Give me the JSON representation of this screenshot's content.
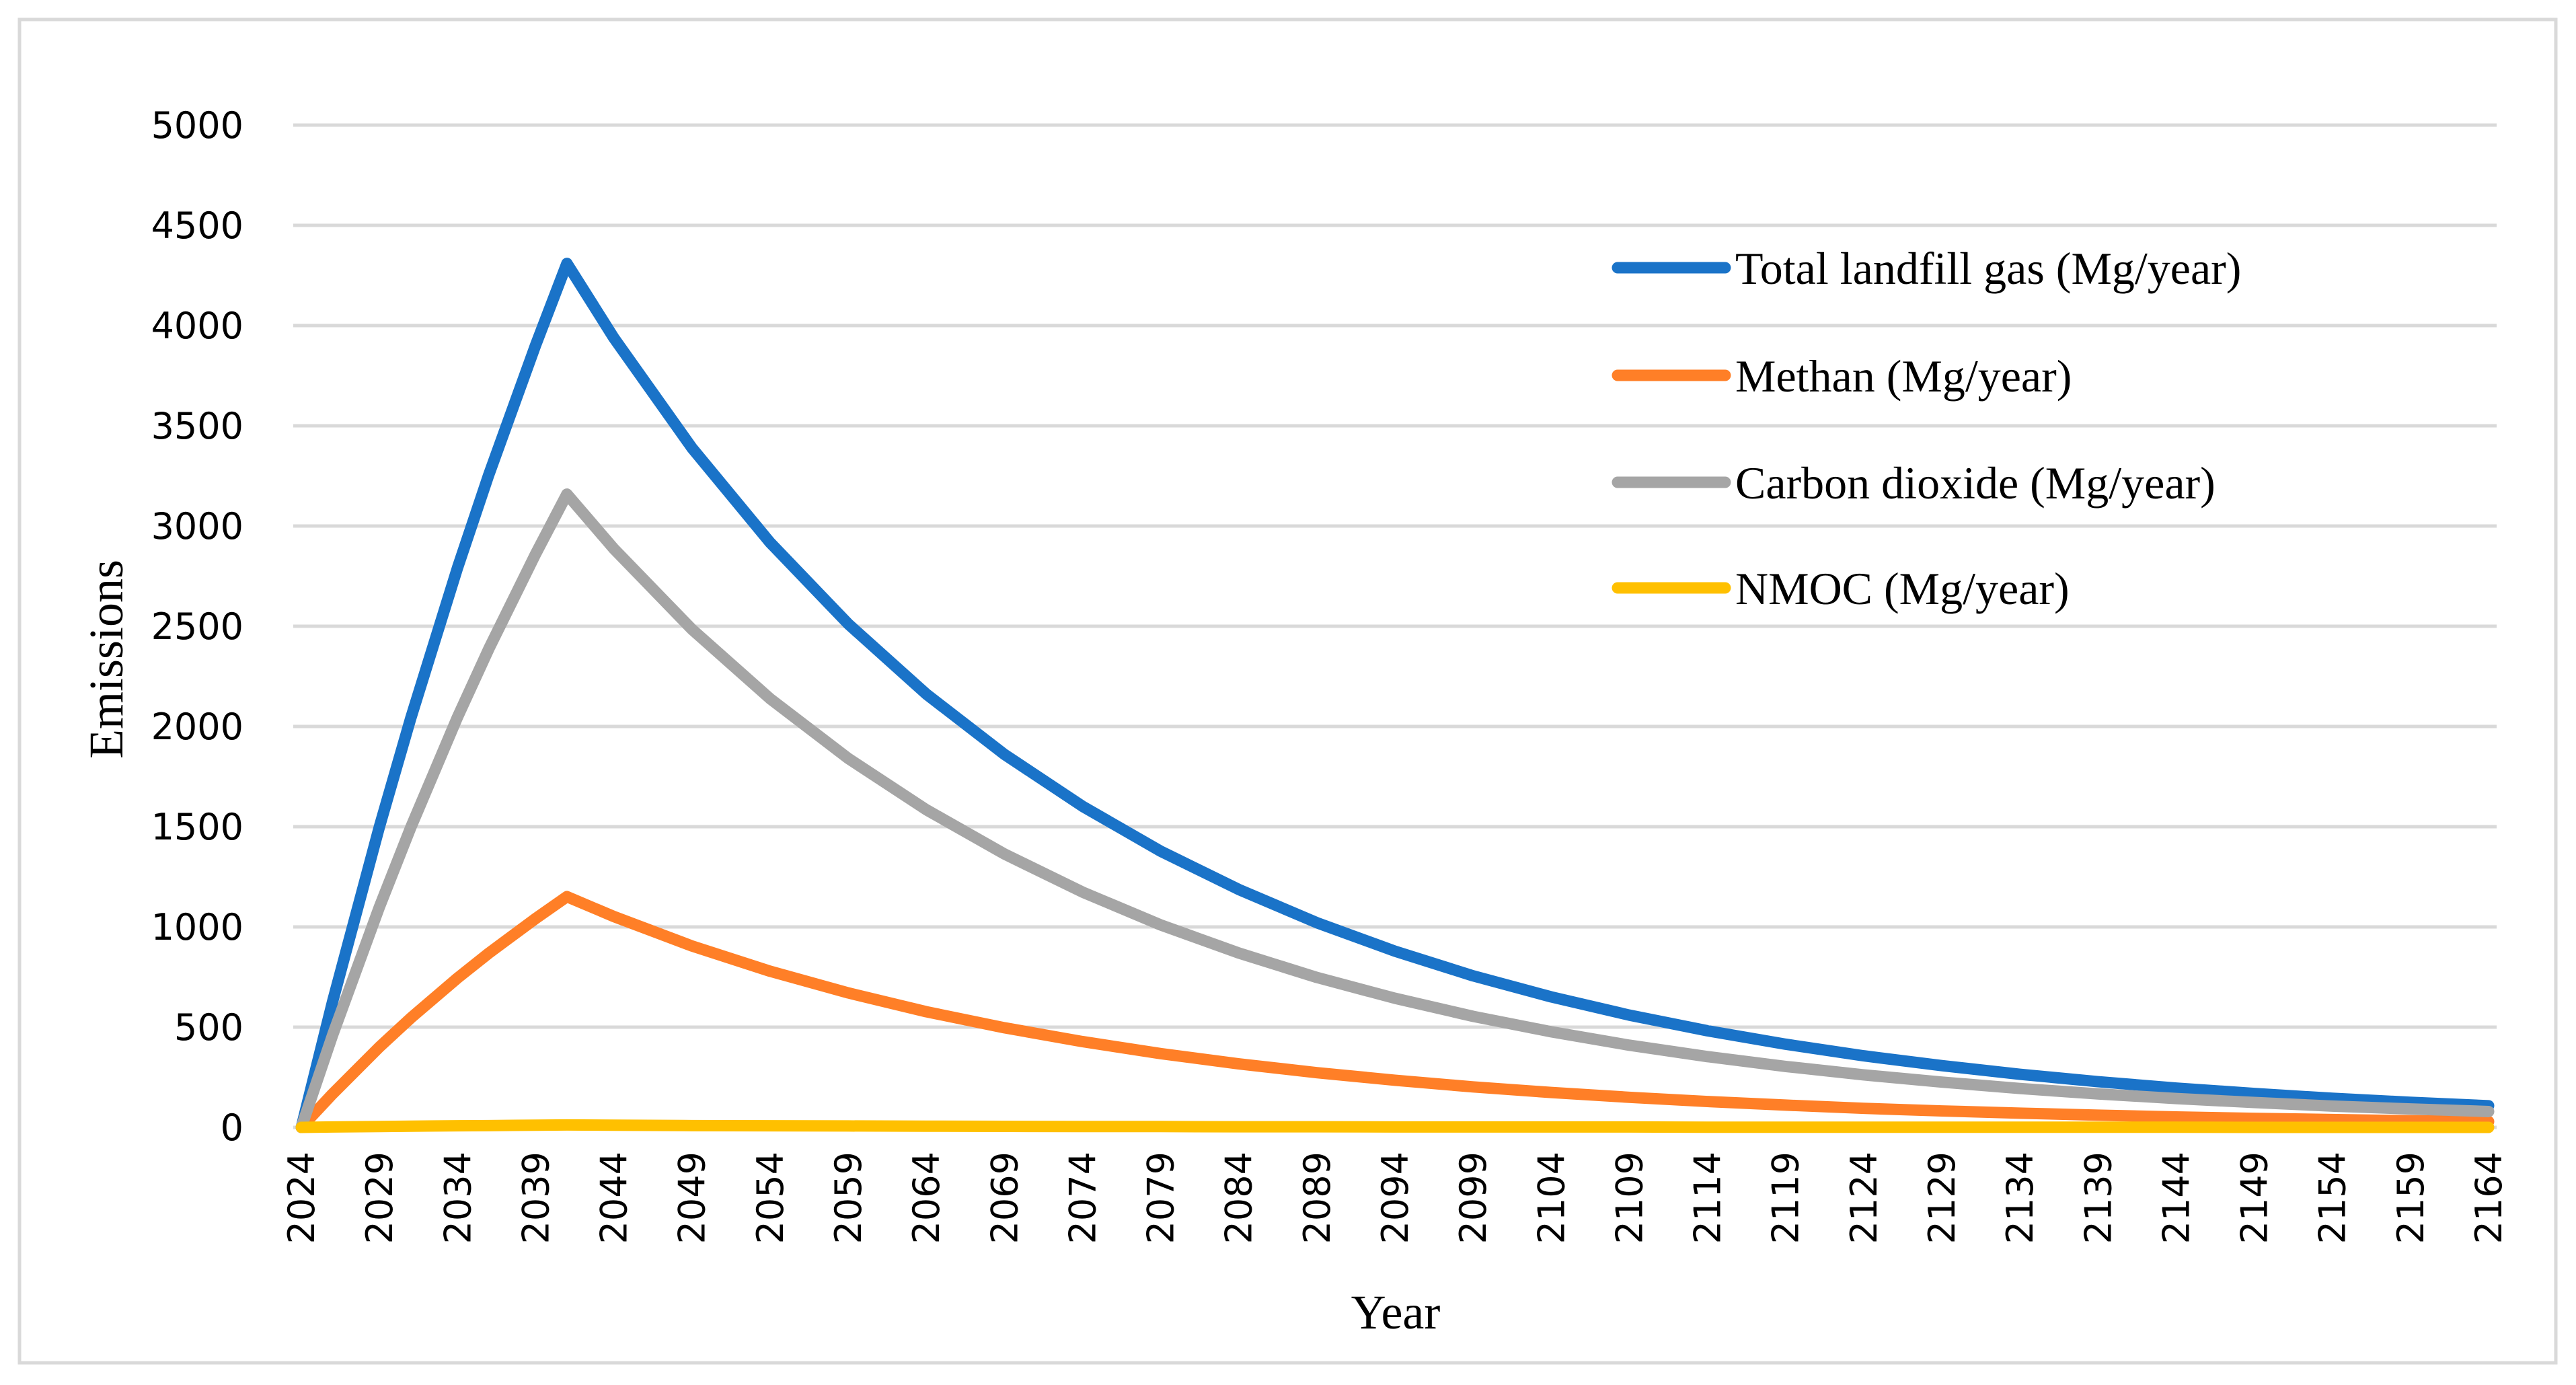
{
  "chart_data": {
    "type": "line",
    "title": "",
    "xlabel": "Year",
    "ylabel": "Emissions",
    "xlim": [
      2024,
      2164
    ],
    "ylim": [
      0,
      5000
    ],
    "yticks": [
      0,
      500,
      1000,
      1500,
      2000,
      2500,
      3000,
      3500,
      4000,
      4500,
      5000
    ],
    "xticks": [
      2024,
      2029,
      2034,
      2039,
      2044,
      2049,
      2054,
      2059,
      2064,
      2069,
      2074,
      2079,
      2084,
      2089,
      2094,
      2099,
      2104,
      2109,
      2114,
      2119,
      2124,
      2129,
      2134,
      2139,
      2144,
      2149,
      2154,
      2159,
      2164
    ],
    "grid": true,
    "legend_position": "top-right",
    "x": [
      2024,
      2026,
      2029,
      2031,
      2034,
      2036,
      2039,
      2041,
      2044,
      2049,
      2054,
      2059,
      2064,
      2069,
      2074,
      2079,
      2084,
      2089,
      2094,
      2099,
      2104,
      2109,
      2114,
      2119,
      2124,
      2129,
      2134,
      2139,
      2144,
      2149,
      2154,
      2159,
      2164
    ],
    "series": [
      {
        "name": "Total landfill gas (Mg/year)",
        "color": "#1a73c8",
        "values": [
          0,
          627,
          1500,
          2040,
          2792,
          3256,
          3903,
          4310,
          3939,
          3390,
          2918,
          2512,
          2162,
          1861,
          1602,
          1378,
          1187,
          1021,
          879,
          756,
          651,
          560,
          482,
          415,
          357,
          308,
          265,
          228,
          196,
          169,
          145,
          125,
          108
        ]
      },
      {
        "name": "Methan (Mg/year)",
        "color": "#ff7f27",
        "values": [
          0,
          167,
          401,
          545,
          745,
          869,
          1042,
          1151,
          1052,
          905,
          779,
          671,
          577,
          497,
          428,
          368,
          317,
          273,
          235,
          202,
          174,
          150,
          129,
          111,
          95,
          82,
          71,
          61,
          52,
          45,
          39,
          33,
          29
        ]
      },
      {
        "name": "Carbon dioxide (Mg/year)",
        "color": "#a5a5a5",
        "values": [
          0,
          460,
          1100,
          1495,
          2047,
          2387,
          2861,
          3159,
          2887,
          2485,
          2139,
          1841,
          1585,
          1364,
          1174,
          1010,
          870,
          748,
          644,
          554,
          477,
          410,
          353,
          304,
          262,
          226,
          194,
          167,
          144,
          124,
          106,
          92,
          79
        ]
      },
      {
        "name": "NMOC (Mg/year)",
        "color": "#ffc000",
        "values": [
          0,
          2,
          4,
          6,
          8,
          9,
          11,
          12,
          11,
          9,
          8,
          7,
          6,
          5,
          4,
          4,
          3,
          3,
          2,
          2,
          2,
          2,
          1,
          1,
          1,
          1,
          1,
          1,
          1,
          0,
          0,
          0,
          0
        ]
      }
    ]
  }
}
